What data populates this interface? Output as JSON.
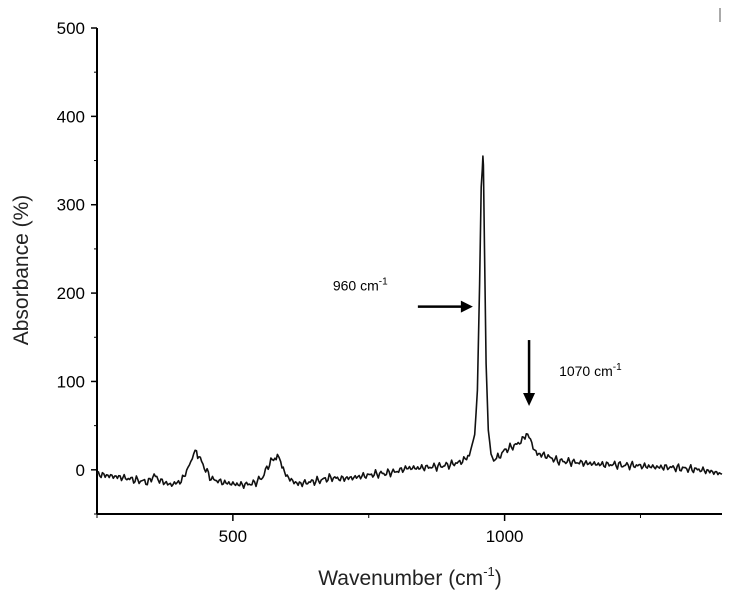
{
  "chart_data": {
    "type": "line",
    "xlabel": "Wavenumber (cm",
    "xlabel_sup": "-1",
    "xlabel_close": ")",
    "ylabel": "Absorbance (%)",
    "xlim": [
      250,
      1400
    ],
    "ylim": [
      -50,
      500
    ],
    "xticks": [
      500,
      1000
    ],
    "yticks": [
      0,
      100,
      200,
      300,
      400,
      500
    ],
    "grid": false,
    "legend": "none",
    "series": [
      {
        "color": "#111111",
        "x": [
          250,
          275,
          300,
          325,
          345,
          355,
          365,
          385,
          405,
          420,
          428,
          433,
          440,
          450,
          460,
          480,
          500,
          520,
          540,
          555,
          565,
          575,
          582,
          588,
          595,
          605,
          620,
          640,
          660,
          680,
          700,
          720,
          740,
          760,
          780,
          800,
          820,
          840,
          860,
          880,
          900,
          920,
          935,
          945,
          950,
          954,
          957,
          959,
          960,
          961,
          963,
          966,
          970,
          975,
          980,
          990,
          1000,
          1010,
          1020,
          1030,
          1040,
          1045,
          1050,
          1055,
          1060,
          1070,
          1080,
          1090,
          1100,
          1120,
          1140,
          1160,
          1180,
          1200,
          1220,
          1240,
          1260,
          1280,
          1300,
          1320,
          1340,
          1360,
          1380,
          1400
        ],
        "y": [
          -5,
          -7,
          -9,
          -12,
          -14,
          -6,
          -12,
          -17,
          -13,
          5,
          18,
          21,
          12,
          0,
          -10,
          -14,
          -16,
          -17,
          -15,
          -8,
          5,
          13,
          15,
          8,
          -3,
          -11,
          -16,
          -14,
          -12,
          -9,
          -10,
          -9,
          -7,
          -5,
          -4,
          -2,
          2,
          2,
          3,
          4,
          6,
          9,
          16,
          40,
          90,
          210,
          320,
          340,
          355,
          345,
          250,
          120,
          45,
          18,
          10,
          15,
          22,
          25,
          28,
          32,
          40,
          38,
          30,
          22,
          18,
          17,
          15,
          12,
          10,
          9,
          8,
          7,
          6,
          6,
          5,
          5,
          4,
          3,
          3,
          2,
          1,
          0,
          -2,
          -5
        ]
      }
    ],
    "annotations": [
      {
        "label": "960 cm",
        "sup": "-1",
        "x": 960,
        "y": 230,
        "arrow": "right"
      },
      {
        "label": "1070 cm",
        "sup": "-1",
        "x": 1045,
        "y": 45,
        "arrow": "down"
      }
    ]
  }
}
